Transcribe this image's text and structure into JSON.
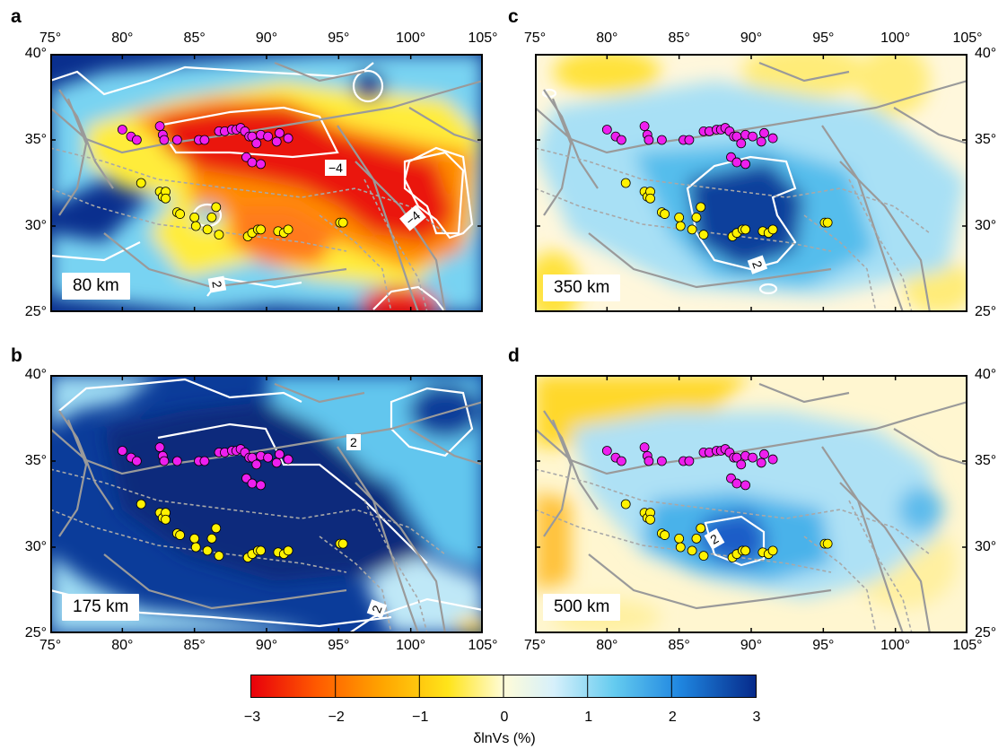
{
  "panels": [
    {
      "letter": "a",
      "depth_label": "80 km",
      "contour_labels": [
        "−4",
        "−4",
        "2"
      ]
    },
    {
      "letter": "b",
      "depth_label": "175 km",
      "contour_labels": [
        "2",
        "2"
      ]
    },
    {
      "letter": "c",
      "depth_label": "350 km",
      "contour_labels": [
        "2"
      ]
    },
    {
      "letter": "d",
      "depth_label": "500 km",
      "contour_labels": [
        "2"
      ]
    }
  ],
  "lon_ticks": [
    "75°",
    "80°",
    "85°",
    "90°",
    "95°",
    "100°",
    "105°"
  ],
  "lat_ticks": [
    "40°",
    "35°",
    "30°",
    "25°"
  ],
  "map_extent": {
    "lon": [
      75,
      105
    ],
    "lat": [
      25,
      40
    ]
  },
  "colorbar": {
    "ticks": [
      "−3",
      "−2",
      "−1",
      "0",
      "1",
      "2",
      "3"
    ],
    "range": [
      -3,
      3
    ],
    "label": "δlnVs (%)",
    "colors": [
      "#e8000b",
      "#ff5a00",
      "#ffa500",
      "#ffe41a",
      "#fffcd8",
      "#d6f0fb",
      "#64cbef",
      "#1f86e0",
      "#062a8a"
    ]
  },
  "stations": {
    "magenta": [
      [
        80,
        35.6
      ],
      [
        80.6,
        35.2
      ],
      [
        81,
        35
      ],
      [
        82.6,
        35.8
      ],
      [
        82.8,
        35.3
      ],
      [
        82.9,
        35
      ],
      [
        83.8,
        35
      ],
      [
        85.3,
        35
      ],
      [
        85.7,
        35
      ],
      [
        86.7,
        35.5
      ],
      [
        87.1,
        35.5
      ],
      [
        87.6,
        35.6
      ],
      [
        87.9,
        35.6
      ],
      [
        88.2,
        35.7
      ],
      [
        88.5,
        35.5
      ],
      [
        88.8,
        35.2
      ],
      [
        89,
        35.2
      ],
      [
        89.6,
        35.3
      ],
      [
        90.1,
        35.2
      ],
      [
        90.9,
        35.4
      ],
      [
        91.5,
        35.1
      ],
      [
        89.3,
        34.8
      ],
      [
        90.7,
        34.9
      ],
      [
        88.6,
        34
      ],
      [
        89,
        33.7
      ],
      [
        89.6,
        33.6
      ]
    ],
    "yellow": [
      [
        81.3,
        32.5
      ],
      [
        82.6,
        32
      ],
      [
        82.8,
        31.7
      ],
      [
        83,
        32
      ],
      [
        83,
        31.6
      ],
      [
        83.8,
        30.8
      ],
      [
        84,
        30.7
      ],
      [
        85,
        30.5
      ],
      [
        85.1,
        30
      ],
      [
        85.9,
        29.8
      ],
      [
        86.2,
        30.5
      ],
      [
        86.5,
        31.1
      ],
      [
        86.7,
        29.5
      ],
      [
        88.7,
        29.4
      ],
      [
        89,
        29.6
      ],
      [
        89.4,
        29.8
      ],
      [
        89.6,
        29.8
      ],
      [
        90.8,
        29.7
      ],
      [
        91.2,
        29.6
      ],
      [
        91.5,
        29.8
      ],
      [
        95.1,
        30.2
      ],
      [
        95.3,
        30.2
      ]
    ]
  }
}
